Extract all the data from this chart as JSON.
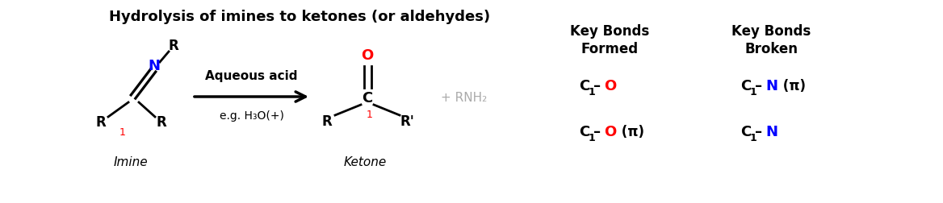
{
  "title": "Hydrolysis of imines to ketones (or aldehydes)",
  "bg_color": "#ffffff",
  "imine_label": "Imine",
  "ketone_label": "Ketone",
  "arrow_label_top": "Aqueous acid",
  "arrow_label_bottom": "e.g. H₃O(+)",
  "plus_rnh2": "+ RNH₂",
  "key_bonds_formed_header": "Key Bonds\nFormed",
  "key_bonds_broken_header": "Key Bonds\nBroken",
  "black": "#000000",
  "red": "#ff0000",
  "blue": "#0000ff",
  "gray": "#aaaaaa",
  "figwidth": 11.68,
  "figheight": 2.52,
  "dpi": 100
}
